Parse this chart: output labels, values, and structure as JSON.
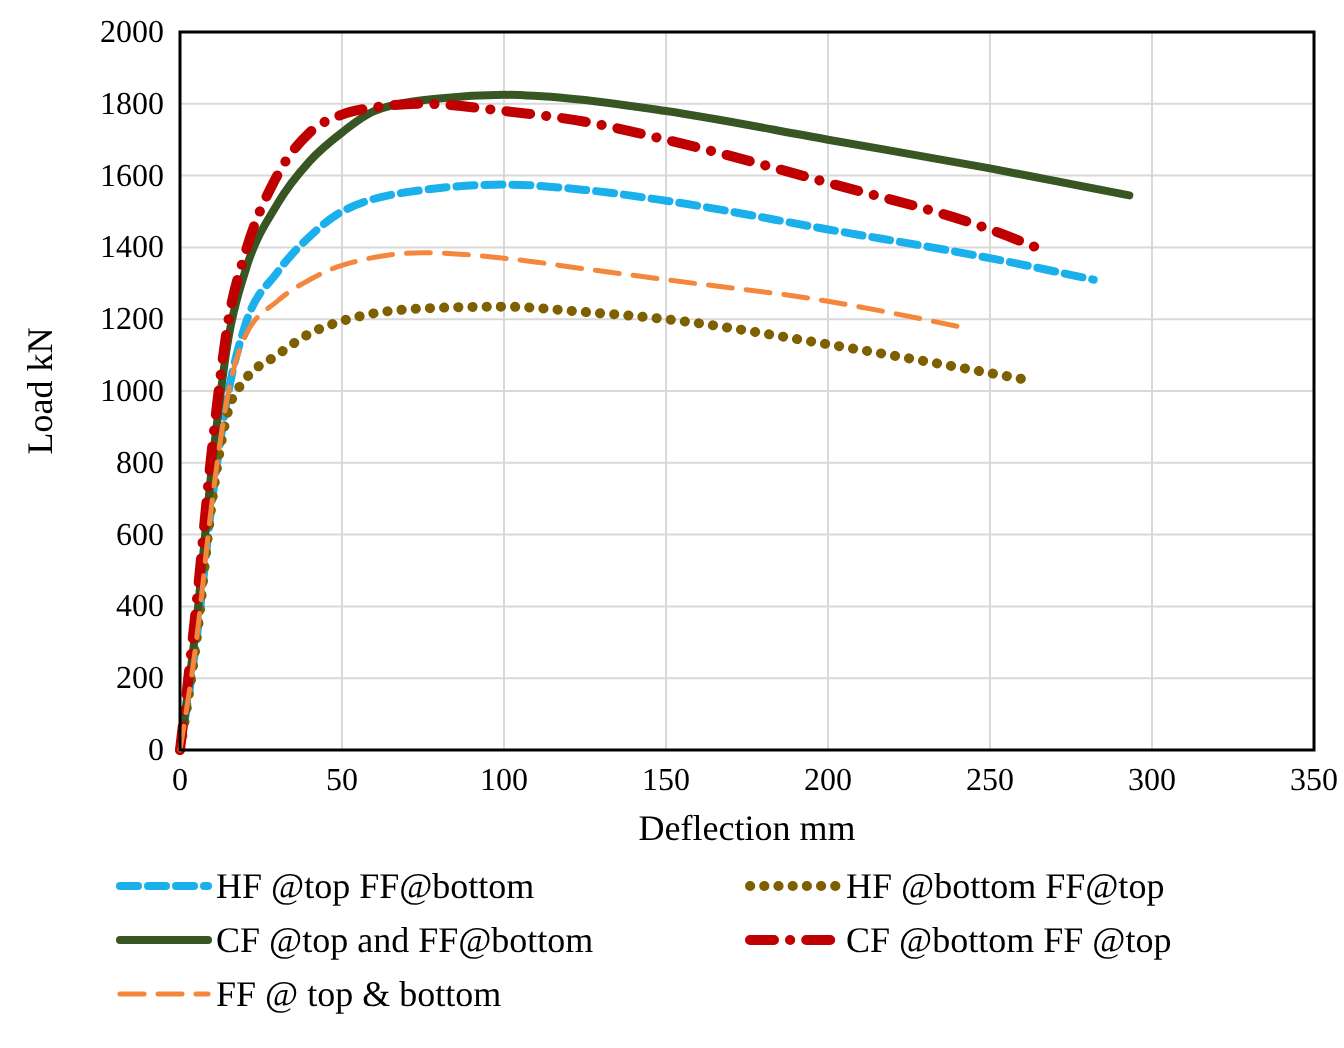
{
  "chart_data": {
    "type": "line",
    "xlabel": "Deflection mm",
    "ylabel": "Load kN",
    "xlim": [
      0,
      350
    ],
    "xticks": [
      0,
      50,
      100,
      150,
      200,
      250,
      300,
      350
    ],
    "ylim": [
      0,
      2000
    ],
    "yticks": [
      0,
      200,
      400,
      600,
      800,
      1000,
      1200,
      1400,
      1600,
      1800,
      2000
    ],
    "grid": true,
    "legend": "bottom",
    "series": [
      {
        "name": "HF @top FF@bottom",
        "color": "#1ab0ec",
        "line_style": "dashed",
        "x": [
          0,
          5,
          10,
          15,
          20,
          30,
          40,
          50,
          75,
          100,
          125,
          150,
          200,
          250,
          282
        ],
        "values": [
          0,
          300,
          700,
          1000,
          1180,
          1330,
          1430,
          1500,
          1560,
          1575,
          1560,
          1530,
          1450,
          1370,
          1310
        ]
      },
      {
        "name": "HF @bottom FF@top",
        "color": "#7f6000",
        "line_style": "dotted",
        "x": [
          0,
          5,
          10,
          15,
          20,
          30,
          40,
          50,
          75,
          100,
          125,
          150,
          200,
          250,
          262
        ],
        "values": [
          0,
          300,
          700,
          950,
          1030,
          1100,
          1160,
          1195,
          1230,
          1235,
          1220,
          1200,
          1130,
          1050,
          1030
        ]
      },
      {
        "name": "CF @top and FF@bottom",
        "color": "#375623",
        "line_style": "solid",
        "x": [
          0,
          5,
          10,
          15,
          20,
          30,
          40,
          50,
          60,
          80,
          100,
          120,
          150,
          200,
          250,
          293
        ],
        "values": [
          0,
          350,
          800,
          1150,
          1330,
          1520,
          1640,
          1720,
          1780,
          1815,
          1825,
          1815,
          1780,
          1700,
          1620,
          1545
        ]
      },
      {
        "name": "CF @bottom FF @top",
        "color": "#c00000",
        "line_style": "dashdot",
        "x": [
          0,
          5,
          10,
          15,
          20,
          30,
          40,
          50,
          60,
          75,
          100,
          125,
          150,
          200,
          250,
          267
        ],
        "values": [
          0,
          400,
          850,
          1200,
          1380,
          1600,
          1720,
          1770,
          1790,
          1800,
          1780,
          1750,
          1700,
          1580,
          1450,
          1390
        ]
      },
      {
        "name": "FF @ top & bottom",
        "color": "#f4873c",
        "line_style": "longdash",
        "x": [
          0,
          5,
          10,
          15,
          20,
          30,
          40,
          50,
          75,
          100,
          125,
          150,
          200,
          240
        ],
        "values": [
          0,
          300,
          700,
          1000,
          1150,
          1250,
          1310,
          1350,
          1385,
          1370,
          1340,
          1310,
          1250,
          1180
        ]
      }
    ]
  }
}
